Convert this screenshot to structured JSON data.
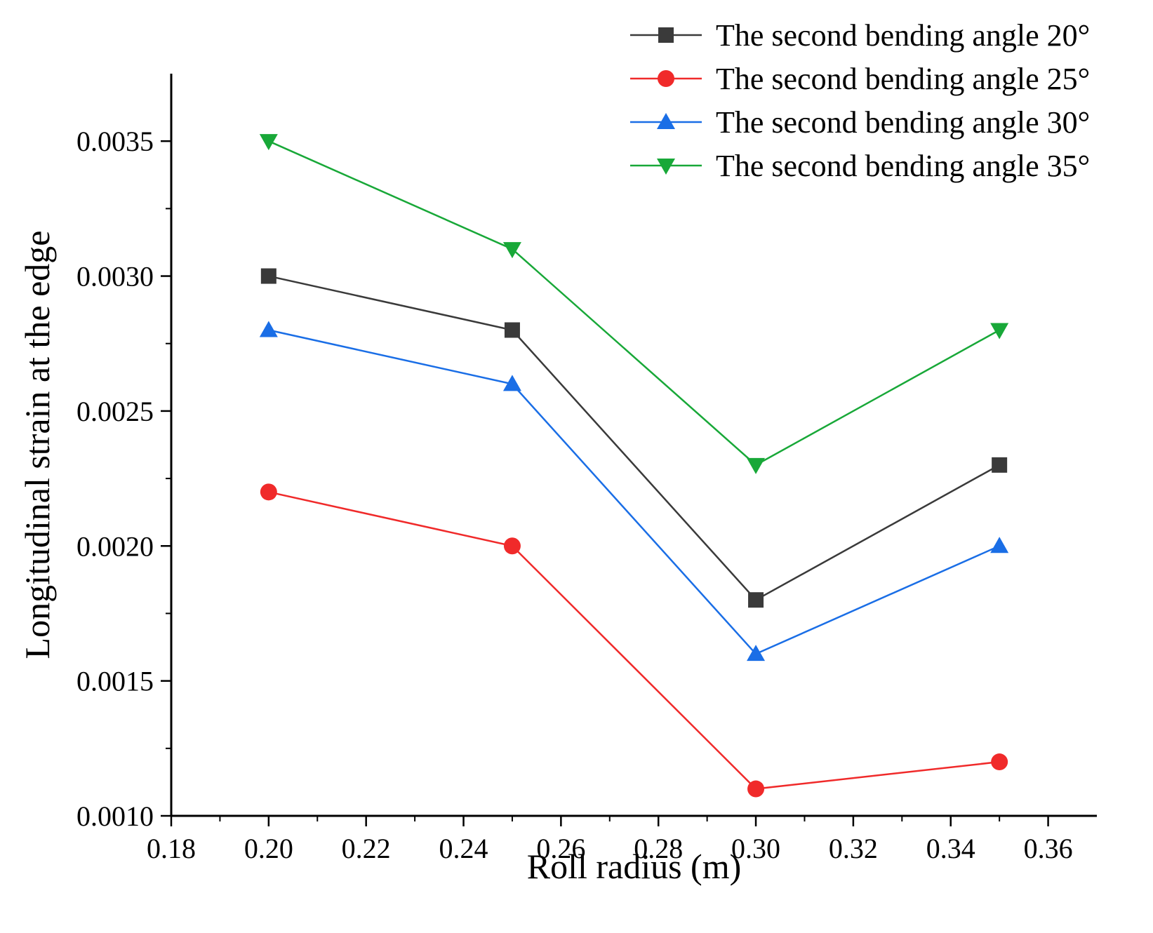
{
  "chart_data": {
    "type": "line",
    "title": "",
    "xlabel": "Roll radius (m)",
    "ylabel": "Longitudinal strain at the edge",
    "xlim": [
      0.18,
      0.37
    ],
    "ylim": [
      0.001,
      0.00375
    ],
    "x_ticks": [
      "0.18",
      "0.20",
      "0.22",
      "0.24",
      "0.26",
      "0.28",
      "0.30",
      "0.32",
      "0.34",
      "0.36"
    ],
    "x_tick_values": [
      0.18,
      0.2,
      0.22,
      0.24,
      0.26,
      0.28,
      0.3,
      0.32,
      0.34,
      0.36
    ],
    "y_ticks": [
      "0.0010",
      "0.0015",
      "0.0020",
      "0.0025",
      "0.0030",
      "0.0035"
    ],
    "y_tick_values": [
      0.001,
      0.0015,
      0.002,
      0.0025,
      0.003,
      0.0035
    ],
    "grid": false,
    "legend_position": "top-right",
    "x": [
      0.2,
      0.25,
      0.3,
      0.35
    ],
    "series": [
      {
        "name": "The second bending angle 20°",
        "color": "#3a3a3a",
        "marker": "square",
        "values": [
          0.003,
          0.0028,
          0.0018,
          0.0023
        ]
      },
      {
        "name": "The second bending angle 25°",
        "color": "#f02a2a",
        "marker": "circle",
        "values": [
          0.0022,
          0.002,
          0.0011,
          0.0012
        ]
      },
      {
        "name": "The second bending angle 30°",
        "color": "#1a6ee6",
        "marker": "triangle-up",
        "values": [
          0.0028,
          0.0026,
          0.0016,
          0.002
        ]
      },
      {
        "name": "The second bending angle 35°",
        "color": "#18a838",
        "marker": "triangle-down",
        "values": [
          0.0035,
          0.0031,
          0.0023,
          0.0028
        ]
      }
    ]
  }
}
